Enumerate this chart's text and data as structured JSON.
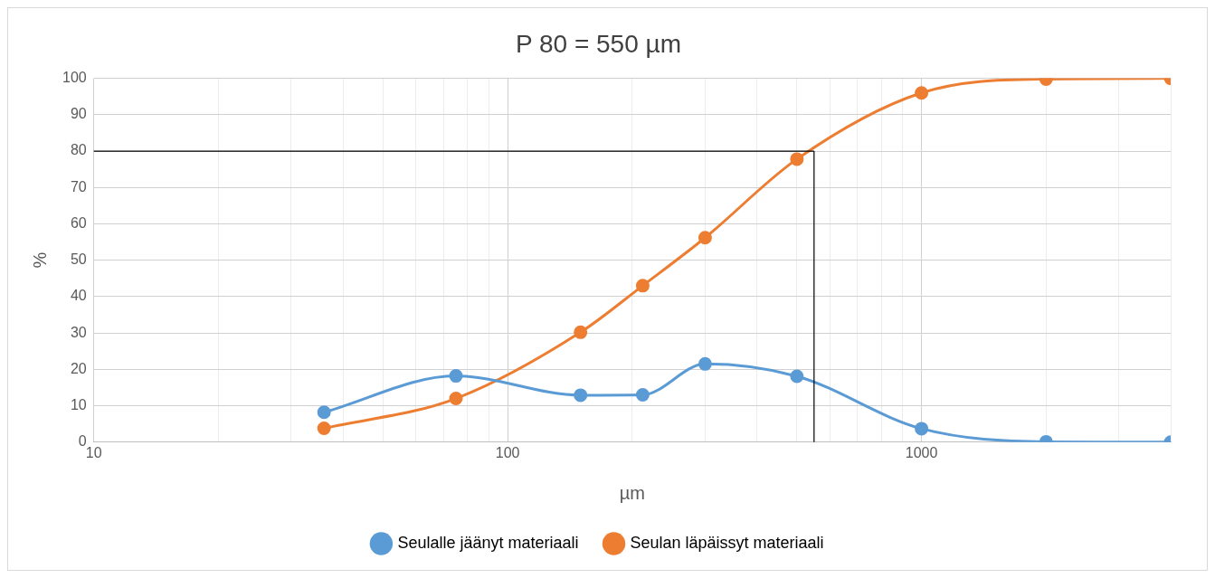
{
  "chart_data": {
    "type": "line",
    "title": "P 80 = 550 µm",
    "xlabel": "µm",
    "ylabel": "%",
    "x": [
      36,
      75,
      150,
      212,
      300,
      500,
      1000,
      2000,
      4000
    ],
    "series": [
      {
        "name": "Seulalle jäänyt materiaali",
        "color": "#5b9bd5",
        "values": [
          8.2,
          18.2,
          12.9,
          13.0,
          21.5,
          18.1,
          3.7,
          0.1,
          0
        ]
      },
      {
        "name": "Seulan läpäissyt materiaali",
        "color": "#ed7d31",
        "values": [
          3.8,
          12,
          30.2,
          43,
          56.2,
          77.8,
          96,
          99.8,
          100
        ]
      }
    ],
    "log": "x",
    "xlim": [
      10,
      4000
    ],
    "xticks": [
      10,
      {
        "value": 20,
        "label": null
      },
      {
        "value": 30,
        "label": null
      },
      {
        "value": 40,
        "label": null
      },
      {
        "value": 50,
        "label": null
      },
      {
        "value": 60,
        "label": null
      },
      {
        "value": 70,
        "label": null
      },
      {
        "value": 80,
        "label": null
      },
      {
        "value": 90,
        "label": null
      },
      100,
      {
        "value": 200,
        "label": null
      },
      {
        "value": 300,
        "label": null
      },
      {
        "value": 400,
        "label": null
      },
      {
        "value": 500,
        "label": null
      },
      {
        "value": 600,
        "label": null
      },
      {
        "value": 700,
        "label": null
      },
      {
        "value": 800,
        "label": null
      },
      {
        "value": 900,
        "label": null
      },
      1000,
      {
        "value": 2000,
        "label": null
      },
      {
        "value": 3000,
        "label": null
      },
      {
        "value": 4000,
        "label": null
      }
    ],
    "ylim": [
      0,
      100
    ],
    "yticks": [
      0,
      10,
      20,
      30,
      40,
      50,
      60,
      70,
      80,
      90,
      100
    ],
    "grid": true,
    "legend": "bottom",
    "marker": "circle",
    "line_style": "solid",
    "ref_lines": [
      {
        "axis": "y",
        "value": 80,
        "color": "#000000"
      },
      {
        "axis": "x",
        "value": 550,
        "color": "#000000"
      }
    ]
  }
}
